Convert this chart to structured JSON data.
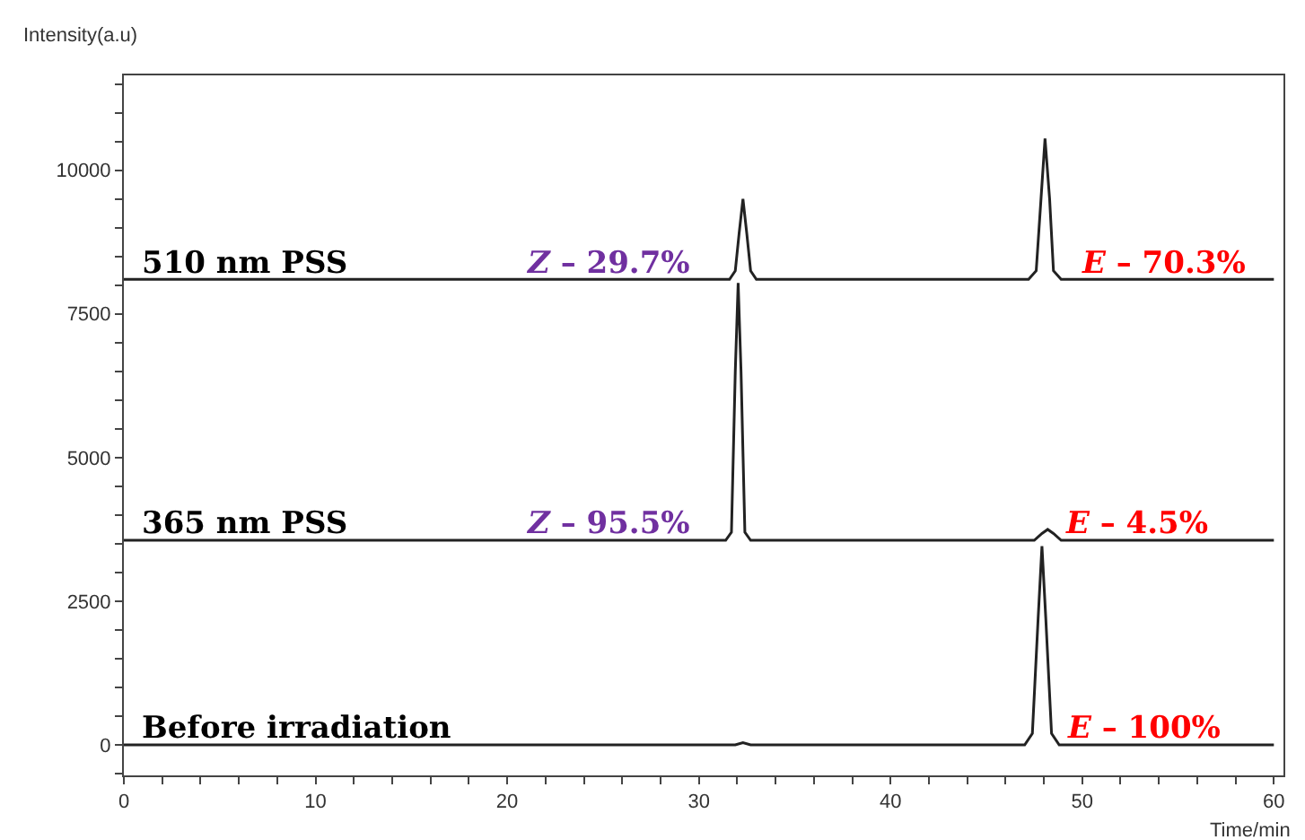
{
  "chart_data": {
    "type": "line",
    "xlabel": "Time/min",
    "ylabel": "Intensity(a.u)",
    "xlim": [
      0,
      60.5
    ],
    "ylim": [
      -530,
      11650
    ],
    "xticks": [
      0,
      {
        "value": 2,
        "label": null
      },
      {
        "value": 4,
        "label": null
      },
      {
        "value": 6,
        "label": null
      },
      {
        "value": 8,
        "label": null
      },
      10,
      {
        "value": 12,
        "label": null
      },
      {
        "value": 14,
        "label": null
      },
      {
        "value": 16,
        "label": null
      },
      {
        "value": 18,
        "label": null
      },
      20,
      {
        "value": 22,
        "label": null
      },
      {
        "value": 24,
        "label": null
      },
      {
        "value": 26,
        "label": null
      },
      {
        "value": 28,
        "label": null
      },
      30,
      {
        "value": 32,
        "label": null
      },
      {
        "value": 34,
        "label": null
      },
      {
        "value": 36,
        "label": null
      },
      {
        "value": 38,
        "label": null
      },
      40,
      {
        "value": 42,
        "label": null
      },
      {
        "value": 44,
        "label": null
      },
      {
        "value": 46,
        "label": null
      },
      {
        "value": 48,
        "label": null
      },
      50,
      {
        "value": 52,
        "label": null
      },
      {
        "value": 54,
        "label": null
      },
      {
        "value": 56,
        "label": null
      },
      {
        "value": 58,
        "label": null
      },
      60
    ],
    "yticks": [
      {
        "value": -500,
        "label": null
      },
      0,
      {
        "value": 500,
        "label": null
      },
      {
        "value": 1000,
        "label": null
      },
      {
        "value": 1500,
        "label": null
      },
      {
        "value": 2000,
        "label": null
      },
      2500,
      {
        "value": 3000,
        "label": null
      },
      {
        "value": 3500,
        "label": null
      },
      {
        "value": 4000,
        "label": null
      },
      {
        "value": 4500,
        "label": null
      },
      5000,
      {
        "value": 5500,
        "label": null
      },
      {
        "value": 6000,
        "label": null
      },
      {
        "value": 6500,
        "label": null
      },
      {
        "value": 7000,
        "label": null
      },
      7500,
      {
        "value": 8000,
        "label": null
      },
      {
        "value": 8500,
        "label": null
      },
      {
        "value": 9000,
        "label": null
      },
      {
        "value": 9500,
        "label": null
      },
      10000,
      {
        "value": 10500,
        "label": null
      },
      {
        "value": 11000,
        "label": null
      },
      {
        "value": 11500,
        "label": null
      }
    ],
    "grid": false,
    "legend": false,
    "marker": "none",
    "line_style": "solid",
    "series": [
      {
        "name": "510 nm PSS",
        "color": "#222222",
        "x": [
          0,
          31.6,
          31.9,
          32.1,
          32.3,
          32.5,
          32.7,
          33.0,
          47.2,
          47.6,
          47.85,
          48.06,
          48.3,
          48.5,
          48.9,
          60
        ],
        "values": [
          8100,
          8100,
          8250,
          8900,
          9500,
          8900,
          8250,
          8100,
          8100,
          8250,
          9500,
          10550,
          9500,
          8250,
          8100,
          8100
        ]
      },
      {
        "name": "365 nm PSS",
        "color": "#222222",
        "x": [
          0,
          31.4,
          31.7,
          31.9,
          32.05,
          32.2,
          32.4,
          32.7,
          47.5,
          47.9,
          48.2,
          48.5,
          48.9,
          60
        ],
        "values": [
          3560,
          3560,
          3700,
          6500,
          8040,
          6500,
          3700,
          3560,
          3560,
          3680,
          3750,
          3680,
          3560,
          3560
        ]
      },
      {
        "name": "Before irradiation",
        "color": "#222222",
        "x": [
          0,
          31.9,
          32.3,
          32.7,
          47.0,
          47.4,
          47.7,
          47.9,
          48.1,
          48.4,
          48.8,
          60
        ],
        "values": [
          0,
          0,
          40,
          0,
          0,
          200,
          2200,
          3460,
          2200,
          200,
          0,
          0
        ]
      }
    ],
    "annotations": [
      {
        "text": "Z – 29.7%",
        "x": 25.2,
        "y": 8100
      },
      {
        "text": "E – 70.3%",
        "x": 54.2,
        "y": 8100
      },
      {
        "text": "Z – 95.5%",
        "x": 25.2,
        "y": 3560
      },
      {
        "text": "E – 4.5%",
        "x": 52.8,
        "y": 3560
      },
      {
        "text": "E – 100%",
        "x": 53.2,
        "y": 0
      }
    ]
  }
}
